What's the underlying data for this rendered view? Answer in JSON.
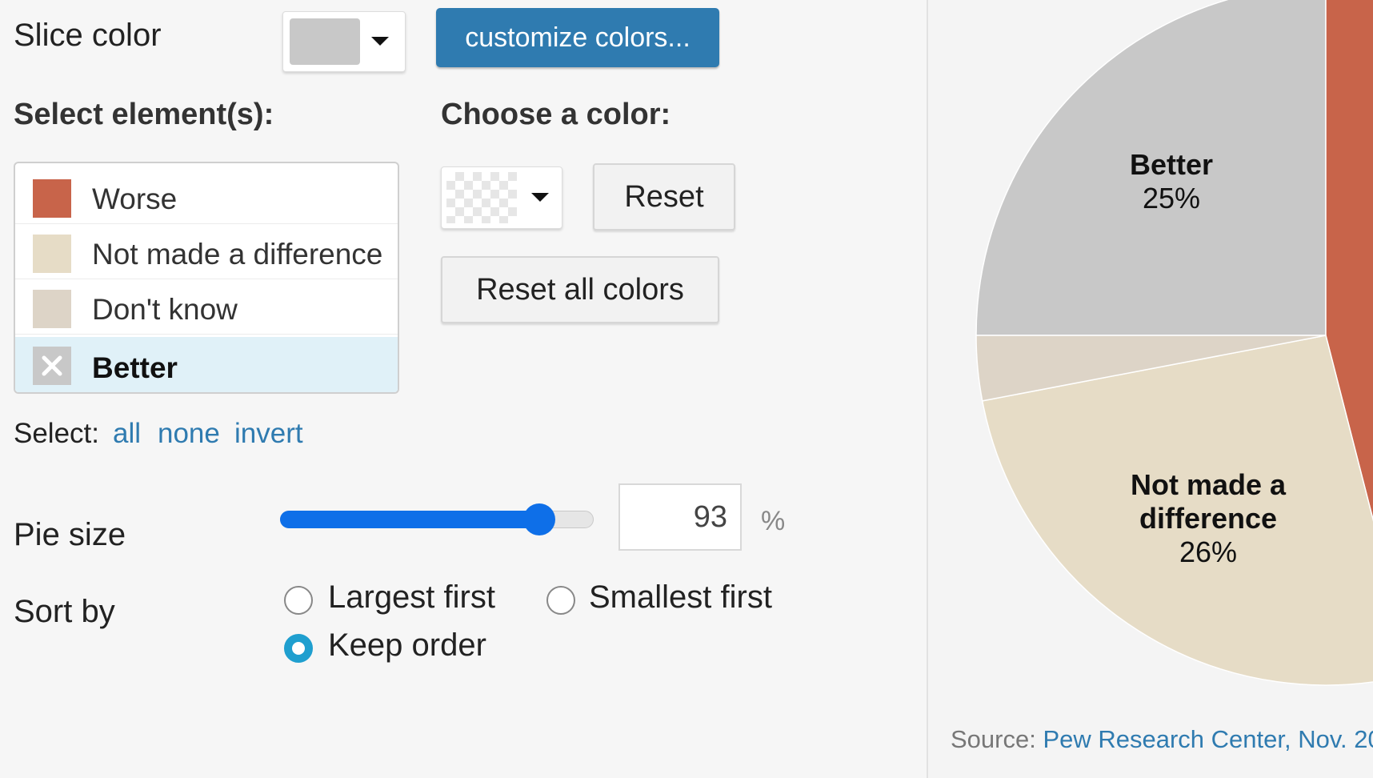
{
  "controls": {
    "slice_color_label": "Slice color",
    "slice_color_value": "#c8c8c8",
    "customize_button": "customize colors...",
    "select_heading": "Select element(s):",
    "choose_heading": "Choose a color:",
    "reset_button": "Reset",
    "reset_all_button": "Reset all colors",
    "select_label": "Select:",
    "select_links": [
      "all",
      "none",
      "invert"
    ],
    "pie_size_label": "Pie size",
    "pie_size_value": "93",
    "pie_size_unit": "%",
    "sort_by_label": "Sort by",
    "sort_options": {
      "largest": "Largest first",
      "smallest": "Smallest first",
      "keep": "Keep order"
    },
    "sort_selected": "keep"
  },
  "elements": [
    {
      "label": "Worse",
      "color": "#c8644a",
      "selected": false
    },
    {
      "label": "Not made a difference",
      "color": "#e6dcc6",
      "selected": false
    },
    {
      "label": "Don't know",
      "color": "#ddd4c7",
      "selected": false
    },
    {
      "label": "Better",
      "color": "#c8c8c8",
      "selected": true
    }
  ],
  "chart_data": {
    "type": "pie",
    "slices": [
      {
        "label": "Better",
        "value": 25,
        "color": "#c8c8c8"
      },
      {
        "label": "Worse",
        "value": 46,
        "color": "#c8644a"
      },
      {
        "label": "Not made a difference",
        "value": 26,
        "color": "#e6dcc6"
      },
      {
        "label": "Don't know",
        "value": 3,
        "color": "#ddd4c7"
      }
    ],
    "labels": {
      "better_name": "Better",
      "better_pct": "25%",
      "nmd_line1": "Not made a",
      "nmd_line2": "difference",
      "nmd_pct": "26%"
    }
  },
  "source": {
    "prefix": "Source: ",
    "link": "Pew Research Center, Nov. 20"
  },
  "colors": {
    "accent": "#2f7bb0",
    "slider": "#0e6fe8",
    "radio_checked": "#1f9fcf"
  }
}
